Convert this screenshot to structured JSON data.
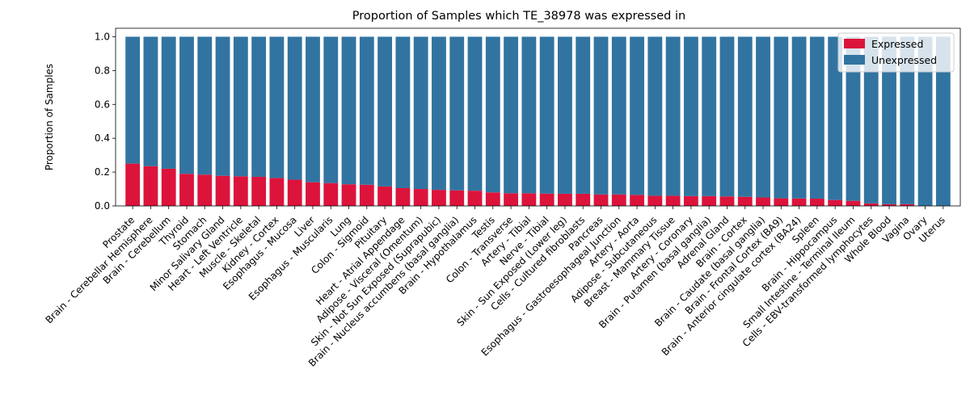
{
  "chart_data": {
    "type": "bar",
    "stacked": true,
    "title": "Proportion of Samples which TE_38978 was expressed in",
    "xlabel": "",
    "ylabel": "Proportion of Samples",
    "ylim": [
      0,
      1.05
    ],
    "yticks": [
      "0.0",
      "0.2",
      "0.4",
      "0.6",
      "0.8",
      "1.0"
    ],
    "legend_position": "top-right",
    "grid": false,
    "categories": [
      "Prostate",
      "Brain - Cerebellar Hemisphere",
      "Brain - Cerebellum",
      "Thyroid",
      "Stomach",
      "Minor Salivary Gland",
      "Heart - Left Ventricle",
      "Muscle - Skeletal",
      "Kidney - Cortex",
      "Esophagus - Mucosa",
      "Liver",
      "Esophagus - Muscularis",
      "Lung",
      "Colon - Sigmoid",
      "Pituitary",
      "Heart - Atrial Appendage",
      "Adipose - Visceral (Omentum)",
      "Skin - Not Sun Exposed (Suprapubic)",
      "Brain - Nucleus accumbens (basal ganglia)",
      "Brain - Hypothalamus",
      "Testis",
      "Colon - Transverse",
      "Artery - Tibial",
      "Nerve - Tibial",
      "Skin - Sun Exposed (Lower leg)",
      "Cells - Cultured fibroblasts",
      "Pancreas",
      "Esophagus - Gastroesophageal Junction",
      "Artery - Aorta",
      "Adipose - Subcutaneous",
      "Breast - Mammary Tissue",
      "Artery - Coronary",
      "Brain - Putamen (basal ganglia)",
      "Adrenal Gland",
      "Brain - Cortex",
      "Brain - Caudate (basal ganglia)",
      "Brain - Frontal Cortex (BA9)",
      "Brain - Anterior cingulate cortex (BA24)",
      "Spleen",
      "Brain - Hippocampus",
      "Small Intestine - Terminal Ileum",
      "Cells - EBV-transformed lymphocytes",
      "Whole Blood",
      "Vagina",
      "Ovary",
      "Uterus"
    ],
    "series": [
      {
        "name": "Expressed",
        "color": "#dc143c",
        "values": [
          0.25,
          0.235,
          0.22,
          0.19,
          0.185,
          0.178,
          0.175,
          0.172,
          0.165,
          0.155,
          0.14,
          0.135,
          0.128,
          0.125,
          0.115,
          0.105,
          0.1,
          0.095,
          0.092,
          0.09,
          0.08,
          0.075,
          0.075,
          0.073,
          0.072,
          0.072,
          0.068,
          0.068,
          0.065,
          0.06,
          0.06,
          0.058,
          0.058,
          0.056,
          0.054,
          0.05,
          0.045,
          0.044,
          0.043,
          0.035,
          0.03,
          0.015,
          0.01,
          0.01,
          0.0,
          0.0
        ]
      },
      {
        "name": "Unexpressed",
        "color": "#3274a1",
        "values": [
          0.75,
          0.765,
          0.78,
          0.81,
          0.815,
          0.822,
          0.825,
          0.828,
          0.835,
          0.845,
          0.86,
          0.865,
          0.872,
          0.875,
          0.885,
          0.895,
          0.9,
          0.905,
          0.908,
          0.91,
          0.92,
          0.925,
          0.925,
          0.927,
          0.928,
          0.928,
          0.932,
          0.932,
          0.935,
          0.94,
          0.94,
          0.942,
          0.942,
          0.944,
          0.946,
          0.95,
          0.955,
          0.956,
          0.957,
          0.965,
          0.97,
          0.985,
          0.99,
          0.99,
          1.0,
          1.0
        ]
      }
    ]
  }
}
